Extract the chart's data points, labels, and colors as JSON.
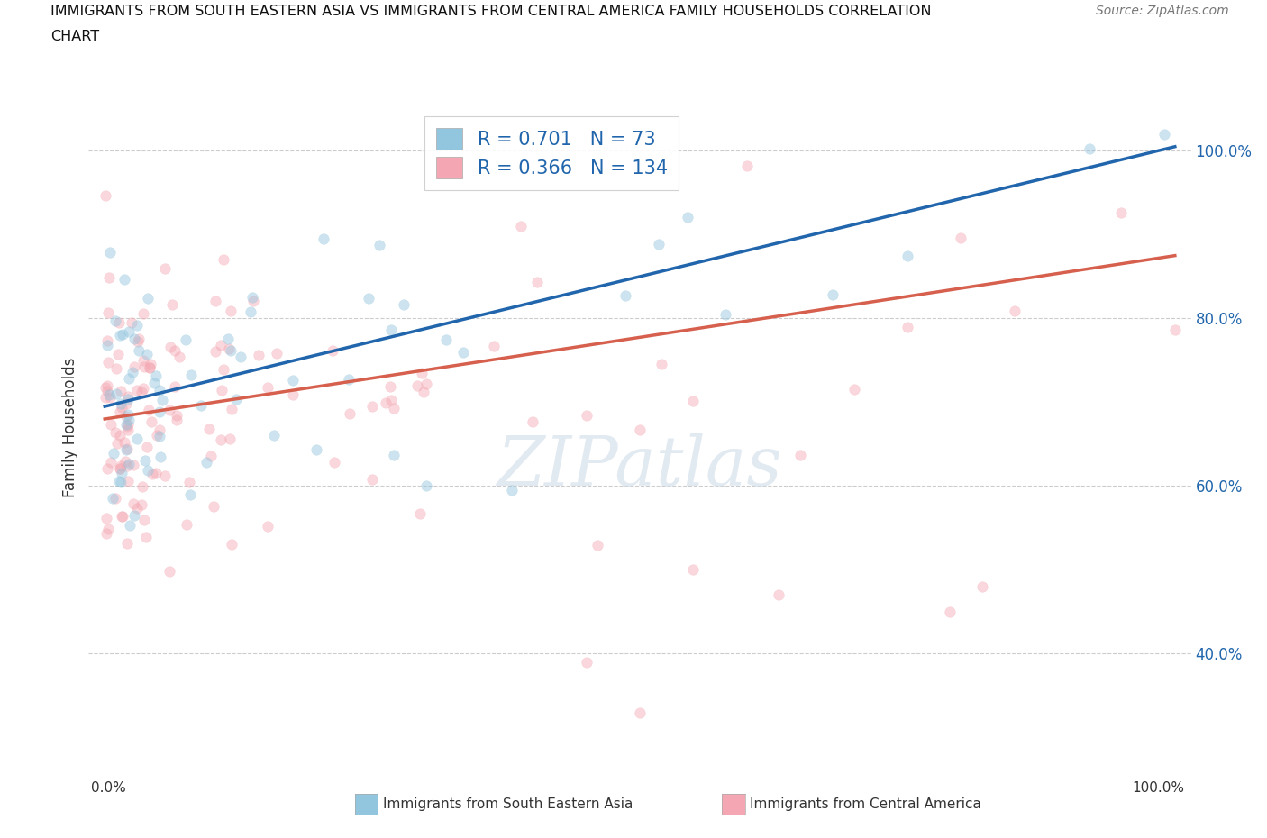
{
  "title_line1": "IMMIGRANTS FROM SOUTH EASTERN ASIA VS IMMIGRANTS FROM CENTRAL AMERICA FAMILY HOUSEHOLDS CORRELATION",
  "title_line2": "CHART",
  "source": "Source: ZipAtlas.com",
  "ylabel": "Family Households",
  "ytick_positions": [
    0.4,
    0.6,
    0.8,
    1.0
  ],
  "ytick_labels": [
    "40.0%",
    "60.0%",
    "80.0%",
    "100.0%"
  ],
  "legend_blue_R": "0.701",
  "legend_blue_N": "73",
  "legend_pink_R": "0.366",
  "legend_pink_N": "134",
  "blue_color": "#92c5de",
  "pink_color": "#f4a7b2",
  "blue_line_color": "#2166ac",
  "pink_line_color": "#d6604d",
  "blue_dot_edge": "#7aafe0",
  "pink_dot_edge": "#f090a0",
  "watermark": "ZIPatlas",
  "series1_name": "Immigrants from South Eastern Asia",
  "series2_name": "Immigrants from Central America",
  "blue_line_start_y": 0.695,
  "blue_line_end_y": 1.005,
  "pink_line_start_y": 0.68,
  "pink_line_end_y": 0.875,
  "ylim_min": 0.28,
  "ylim_max": 1.06,
  "xlim_min": -0.015,
  "xlim_max": 1.015,
  "grid_color": "#cccccc",
  "marker_size": 70,
  "marker_alpha": 0.45
}
